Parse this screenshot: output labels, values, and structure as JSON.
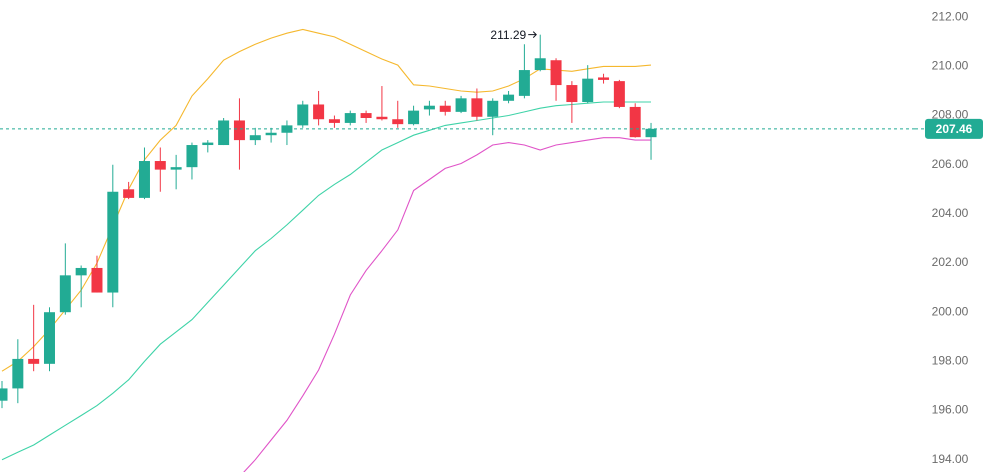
{
  "chart_data": {
    "type": "candlestick",
    "ylim": [
      193.5,
      212.7
    ],
    "yticks": [
      {
        "value": 194,
        "label": "194.00"
      },
      {
        "value": 196,
        "label": "196.00"
      },
      {
        "value": 198,
        "label": "198.00"
      },
      {
        "value": 200,
        "label": "200.00"
      },
      {
        "value": 202,
        "label": "202.00"
      },
      {
        "value": 204,
        "label": "204.00"
      },
      {
        "value": 206,
        "label": "206.00"
      },
      {
        "value": 208,
        "label": "208.00"
      },
      {
        "value": 210,
        "label": "210.00"
      },
      {
        "value": 212,
        "label": "212.00"
      }
    ],
    "up_color": "#22ab94",
    "down_color": "#f23645",
    "candles": {
      "open": [
        196.4,
        196.9,
        198.1,
        197.9,
        200.0,
        201.5,
        201.8,
        200.8,
        205.0,
        204.65,
        206.15,
        205.8,
        205.9,
        206.8,
        206.8,
        207.8,
        207.0,
        207.2,
        207.3,
        207.6,
        208.45,
        207.85,
        207.7,
        208.1,
        207.95,
        207.85,
        207.65,
        208.25,
        208.4,
        208.15,
        208.7,
        207.95,
        208.6,
        208.8,
        209.85,
        210.25,
        209.24,
        208.55,
        209.55,
        209.4,
        208.35,
        207.12
      ],
      "high": [
        197.2,
        198.9,
        200.3,
        200.2,
        202.8,
        201.9,
        202.3,
        206.0,
        205.3,
        206.7,
        206.7,
        206.4,
        206.9,
        207.0,
        207.9,
        208.7,
        207.5,
        207.5,
        207.8,
        208.6,
        209.0,
        208.0,
        208.2,
        208.2,
        209.2,
        208.6,
        208.4,
        208.6,
        208.6,
        208.8,
        209.1,
        208.7,
        209.0,
        210.9,
        211.29,
        210.33,
        209.4,
        210.05,
        209.7,
        209.45,
        208.5,
        207.7
      ],
      "low": [
        196.1,
        196.3,
        197.6,
        197.6,
        199.9,
        200.2,
        200.8,
        200.2,
        204.6,
        204.6,
        204.9,
        205.0,
        205.4,
        206.5,
        206.8,
        205.8,
        206.8,
        206.9,
        206.8,
        207.5,
        207.6,
        207.5,
        207.6,
        207.7,
        207.8,
        207.5,
        207.6,
        208.0,
        208.0,
        208.1,
        207.8,
        207.2,
        208.5,
        208.7,
        209.8,
        208.6,
        207.7,
        208.5,
        209.3,
        208.3,
        207.1,
        206.2
      ],
      "close": [
        196.9,
        198.1,
        197.9,
        200.0,
        201.5,
        201.8,
        200.8,
        204.9,
        204.65,
        206.15,
        205.8,
        205.9,
        206.8,
        206.9,
        207.8,
        207.0,
        207.2,
        207.3,
        207.6,
        208.45,
        207.85,
        207.7,
        208.1,
        207.9,
        207.85,
        207.65,
        208.2,
        208.4,
        208.15,
        208.7,
        207.95,
        208.6,
        208.85,
        209.85,
        210.33,
        209.24,
        208.55,
        209.5,
        209.45,
        208.35,
        207.12,
        207.46
      ]
    },
    "series": [
      {
        "color": "#f5b82e",
        "values": [
          197.6,
          198.0,
          198.6,
          199.3,
          200.1,
          200.9,
          202.0,
          203.5,
          205.0,
          206.2,
          207.0,
          207.6,
          208.8,
          209.5,
          210.25,
          210.6,
          210.9,
          211.15,
          211.35,
          211.5,
          211.35,
          211.2,
          210.9,
          210.6,
          210.3,
          210.05,
          209.25,
          209.2,
          209.1,
          209.0,
          208.95,
          209.0,
          209.2,
          209.5,
          209.9,
          209.85,
          209.8,
          209.9,
          210.0,
          210.0,
          210.0,
          210.05
        ]
      },
      {
        "color": "#3fd3a8",
        "values": [
          194.0,
          194.3,
          194.6,
          195.0,
          195.4,
          195.8,
          196.2,
          196.7,
          197.25,
          198.0,
          198.7,
          199.2,
          199.7,
          200.4,
          201.1,
          201.8,
          202.5,
          203.0,
          203.55,
          204.15,
          204.75,
          205.2,
          205.6,
          206.1,
          206.6,
          206.9,
          207.2,
          207.4,
          207.6,
          207.7,
          207.8,
          207.9,
          208.0,
          208.15,
          208.3,
          208.4,
          208.45,
          208.5,
          208.55,
          208.55,
          208.55,
          208.55
        ]
      },
      {
        "color": "#e054c8",
        "values": [
          null,
          null,
          null,
          null,
          null,
          null,
          null,
          null,
          null,
          null,
          null,
          null,
          null,
          null,
          null,
          193.3,
          194.0,
          194.8,
          195.6,
          196.6,
          197.65,
          199.1,
          200.7,
          201.7,
          202.5,
          203.35,
          204.95,
          205.4,
          205.85,
          206.05,
          206.4,
          206.8,
          206.9,
          206.8,
          206.6,
          206.8,
          206.9,
          207.0,
          207.1,
          207.1,
          207.0,
          207.0
        ]
      }
    ],
    "price_line": 207.46,
    "high_label": 211.29
  }
}
